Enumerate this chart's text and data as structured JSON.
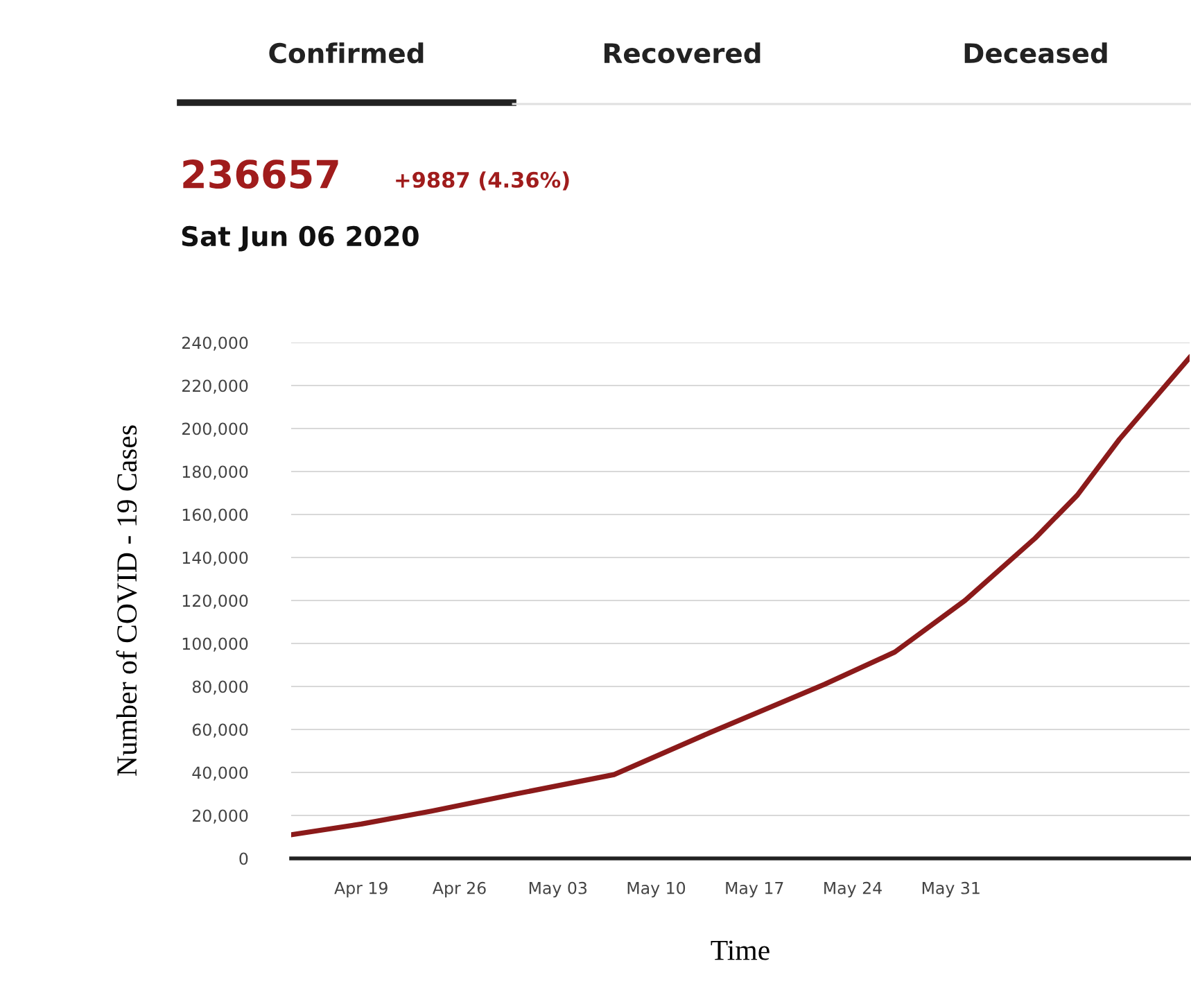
{
  "chart_data": {
    "type": "line",
    "xlabel": "Time",
    "ylabel": "Number of COVID - 19 Cases",
    "annotations": [
      "Confirmed",
      "Recovered",
      "Deceased",
      "236657",
      "+9887 (4.36%)",
      "Sat Jun 06 2020"
    ],
    "x": [
      "2020-04-14",
      "2020-04-19",
      "2020-04-24",
      "2020-04-30",
      "2020-05-07",
      "2020-05-14",
      "2020-05-22",
      "2020-05-27",
      "2020-06-01",
      "2020-06-06",
      "2020-06-09",
      "2020-06-12",
      "2020-06-17"
    ],
    "series": [
      {
        "color": "#8b1a1a",
        "values": [
          11000,
          16000,
          22000,
          30000,
          39000,
          59000,
          81000,
          96000,
          120000,
          149000,
          169000,
          195000,
          233000
        ]
      }
    ],
    "xlim": [
      "2020-04-14",
      "2020-06-17"
    ],
    "xticks": [
      {
        "value": "2020-04-19",
        "label": "Apr 19"
      },
      {
        "value": "2020-04-26",
        "label": "Apr 26"
      },
      {
        "value": "2020-05-03",
        "label": "May 03"
      },
      {
        "value": "2020-05-10",
        "label": "May 10"
      },
      {
        "value": "2020-05-17",
        "label": "May 17"
      },
      {
        "value": "2020-05-24",
        "label": "May 24"
      },
      {
        "value": "2020-05-31",
        "label": "May 31"
      }
    ],
    "ylim": [
      0,
      240000
    ],
    "yticks": [
      {
        "value": 0,
        "label": "0"
      },
      {
        "value": 20000,
        "label": "20,000"
      },
      {
        "value": 40000,
        "label": "40,000"
      },
      {
        "value": 60000,
        "label": "60,000"
      },
      {
        "value": 80000,
        "label": "80,000"
      },
      {
        "value": 100000,
        "label": "100,000"
      },
      {
        "value": 120000,
        "label": "120,000"
      },
      {
        "value": 140000,
        "label": "140,000"
      },
      {
        "value": 160000,
        "label": "160,000"
      },
      {
        "value": 180000,
        "label": "180,000"
      },
      {
        "value": 200000,
        "label": "200,000"
      },
      {
        "value": 220000,
        "label": "220,000"
      },
      {
        "value": 240000,
        "label": "240,000"
      }
    ],
    "grid": "y",
    "legend": false,
    "marker": "none",
    "line_style": "solid"
  }
}
